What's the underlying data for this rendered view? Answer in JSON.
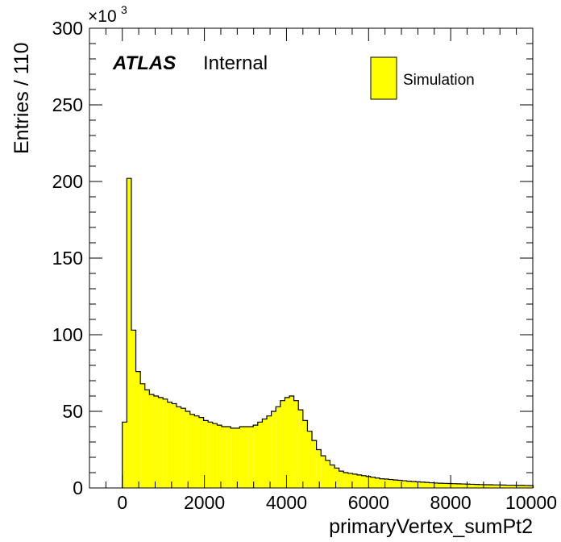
{
  "chart_data": {
    "type": "histogram",
    "title": "",
    "experiment_label": "ATLAS",
    "status_label": "Internal",
    "xlabel": "primaryVertex_sumPt2",
    "ylabel": "Entries / 110",
    "y_multiplier_label": "×10",
    "y_multiplier_exponent": "3",
    "xlim": [
      -800,
      10000
    ],
    "ylim": [
      0,
      300
    ],
    "x_ticks": [
      0,
      2000,
      4000,
      6000,
      8000,
      10000
    ],
    "x_tick_labels": [
      "0",
      "2000",
      "4000",
      "6000",
      "8000",
      "10000"
    ],
    "y_ticks": [
      0,
      50,
      100,
      150,
      200,
      250,
      300
    ],
    "y_tick_labels": [
      "0",
      "50",
      "100",
      "150",
      "200",
      "250",
      "300"
    ],
    "legend": {
      "placement": "top-right",
      "entries": [
        {
          "name": "Simulation",
          "color": "#ffff00"
        }
      ]
    },
    "fill_color": "#ffff00",
    "line_color": "#000000",
    "bin_width": 110,
    "x_start": 0,
    "values": [
      43,
      202,
      103,
      76,
      68,
      64,
      61,
      60,
      59,
      58,
      56,
      55,
      53,
      52,
      50,
      48,
      47,
      46,
      44,
      43,
      42,
      41,
      40,
      40,
      39,
      39,
      40,
      40,
      40,
      41,
      43,
      45,
      47,
      50,
      53,
      57,
      59,
      60,
      57,
      51,
      44,
      37,
      31,
      25,
      21,
      18,
      15,
      13,
      11,
      10,
      9.5,
      9,
      8.5,
      8,
      7.5,
      7,
      6.5,
      6,
      5.8,
      5.5,
      5.2,
      5,
      4.7,
      4.4,
      4.2,
      4,
      3.8,
      3.6,
      3.4,
      3.2,
      3.1,
      3,
      2.9,
      2.8,
      2.7,
      2.6,
      2.5,
      2.4,
      2.3,
      2.2,
      2.1,
      2.1,
      2,
      2,
      1.9,
      1.8,
      1.8,
      1.7,
      1.7,
      1.6,
      1.5
    ]
  }
}
